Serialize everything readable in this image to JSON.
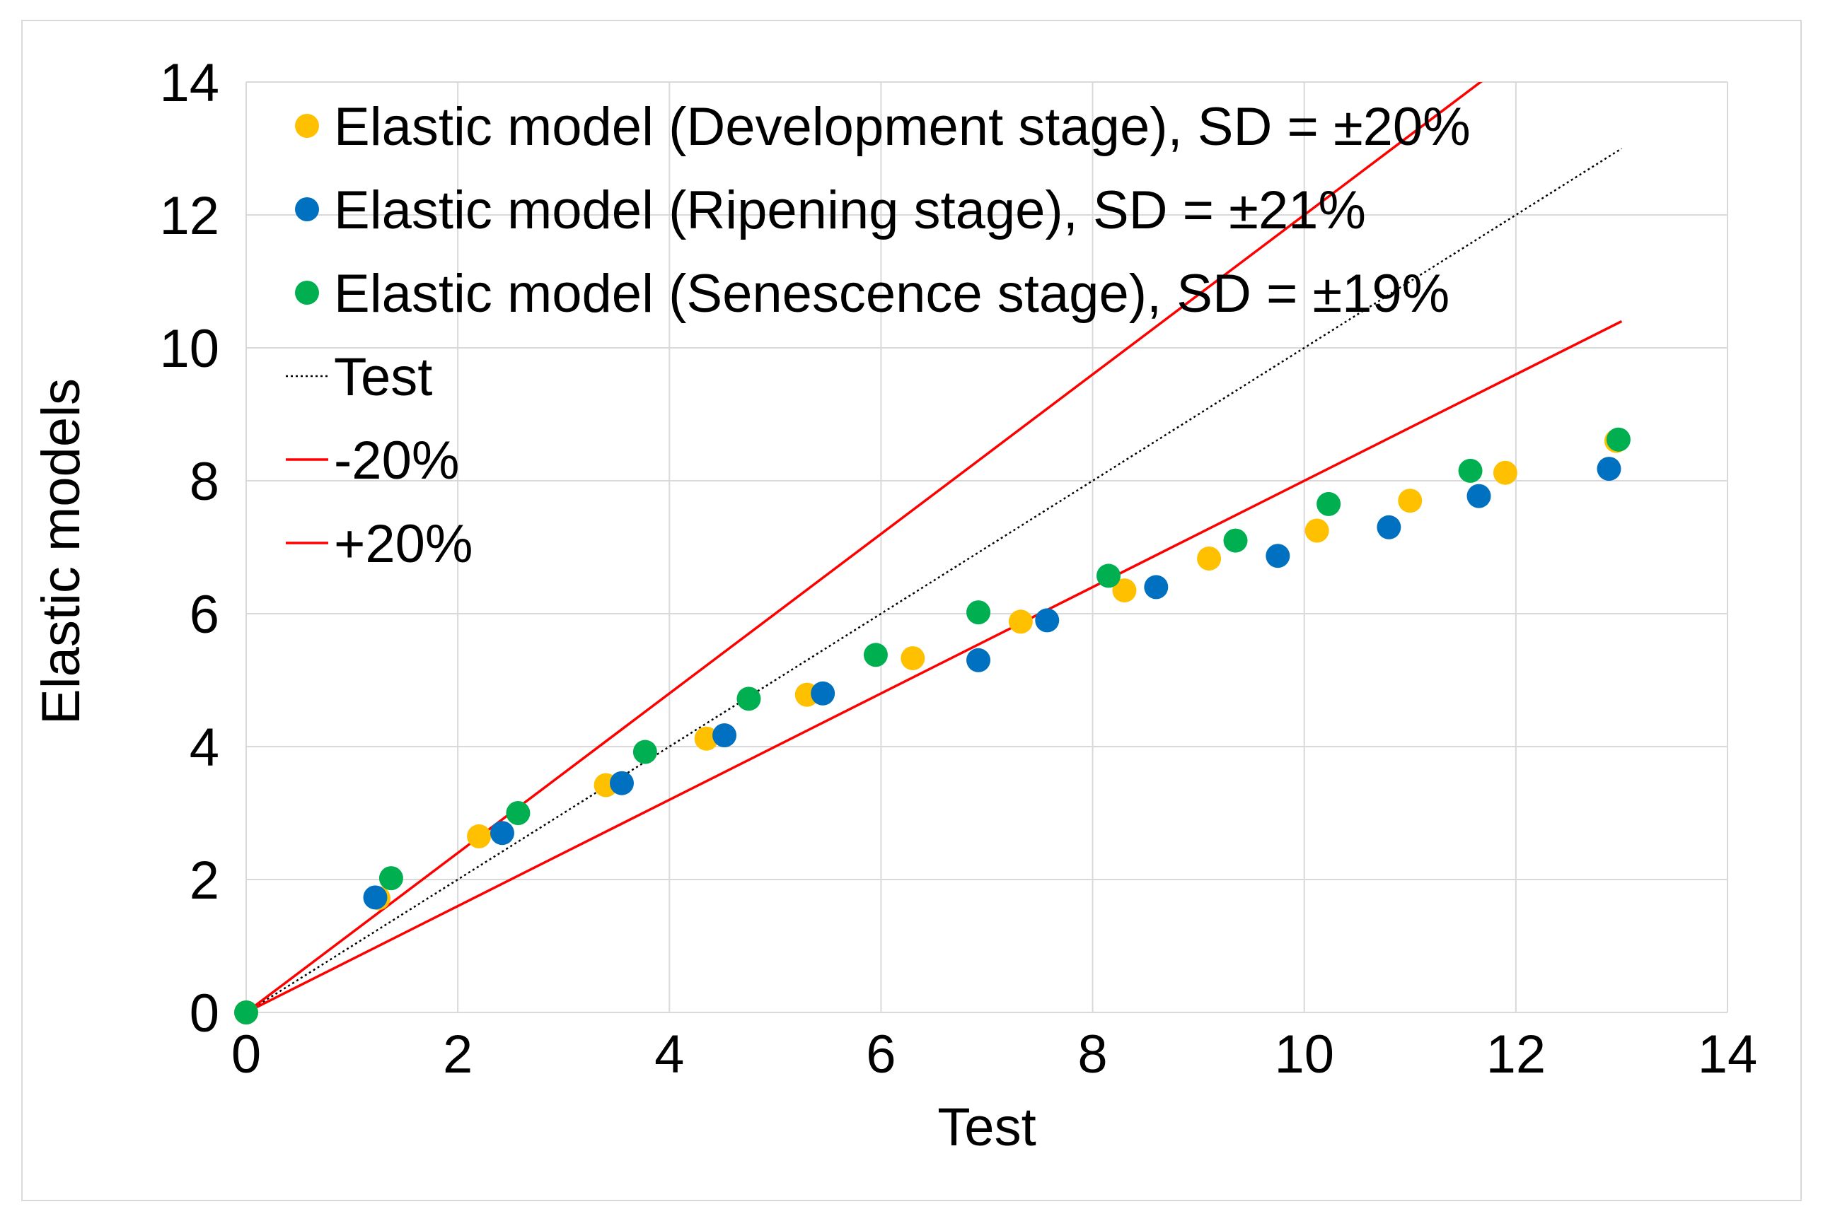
{
  "chart_data": {
    "type": "scatter",
    "title": "",
    "xlabel": "Test",
    "ylabel": "Elastic models",
    "xlim": [
      0,
      14
    ],
    "ylim": [
      0,
      14
    ],
    "xticks": [
      0,
      2,
      4,
      6,
      8,
      10,
      12,
      14
    ],
    "yticks": [
      0,
      2,
      4,
      6,
      8,
      10,
      12,
      14
    ],
    "grid": true,
    "legend_position": "top-left",
    "series": [
      {
        "name": "Elastic model (Development stage), SD = ±20%",
        "kind": "points",
        "color": "#FFC000",
        "points": [
          [
            0,
            0
          ],
          [
            1.25,
            1.72
          ],
          [
            2.2,
            2.65
          ],
          [
            3.4,
            3.42
          ],
          [
            4.35,
            4.12
          ],
          [
            5.3,
            4.78
          ],
          [
            6.3,
            5.33
          ],
          [
            7.32,
            5.88
          ],
          [
            8.3,
            6.35
          ],
          [
            9.1,
            6.83
          ],
          [
            10.12,
            7.25
          ],
          [
            11.0,
            7.7
          ],
          [
            11.9,
            8.12
          ],
          [
            12.95,
            8.6
          ]
        ]
      },
      {
        "name": "Elastic model (Ripening stage), SD = ±21%",
        "kind": "points",
        "color": "#0070C0",
        "points": [
          [
            1.22,
            1.73
          ],
          [
            2.42,
            2.7
          ],
          [
            3.55,
            3.45
          ],
          [
            4.52,
            4.17
          ],
          [
            5.45,
            4.8
          ],
          [
            6.92,
            5.3
          ],
          [
            7.57,
            5.9
          ],
          [
            8.6,
            6.4
          ],
          [
            9.75,
            6.87
          ],
          [
            10.8,
            7.3
          ],
          [
            11.65,
            7.77
          ],
          [
            12.88,
            8.18
          ]
        ]
      },
      {
        "name": "Elastic model (Senescence stage), SD = ±19%",
        "kind": "points",
        "color": "#00B050",
        "points": [
          [
            0,
            0
          ],
          [
            1.37,
            2.02
          ],
          [
            2.57,
            3.0
          ],
          [
            3.77,
            3.92
          ],
          [
            4.75,
            4.72
          ],
          [
            5.95,
            5.38
          ],
          [
            6.92,
            6.02
          ],
          [
            8.15,
            6.57
          ],
          [
            9.35,
            7.1
          ],
          [
            10.23,
            7.65
          ],
          [
            11.57,
            8.15
          ],
          [
            12.97,
            8.62
          ]
        ]
      },
      {
        "name": "Test",
        "kind": "line",
        "style": "dotted",
        "color": "#000000",
        "points": [
          [
            0,
            0
          ],
          [
            13,
            13
          ]
        ]
      },
      {
        "name": "-20%",
        "kind": "line",
        "style": "solid",
        "color": "#FF0000",
        "points": [
          [
            0,
            0
          ],
          [
            13,
            10.4
          ]
        ]
      },
      {
        "name": "+20%",
        "kind": "line",
        "style": "solid",
        "color": "#FF0000",
        "points": [
          [
            0,
            0
          ],
          [
            13,
            15.6
          ]
        ]
      }
    ]
  }
}
